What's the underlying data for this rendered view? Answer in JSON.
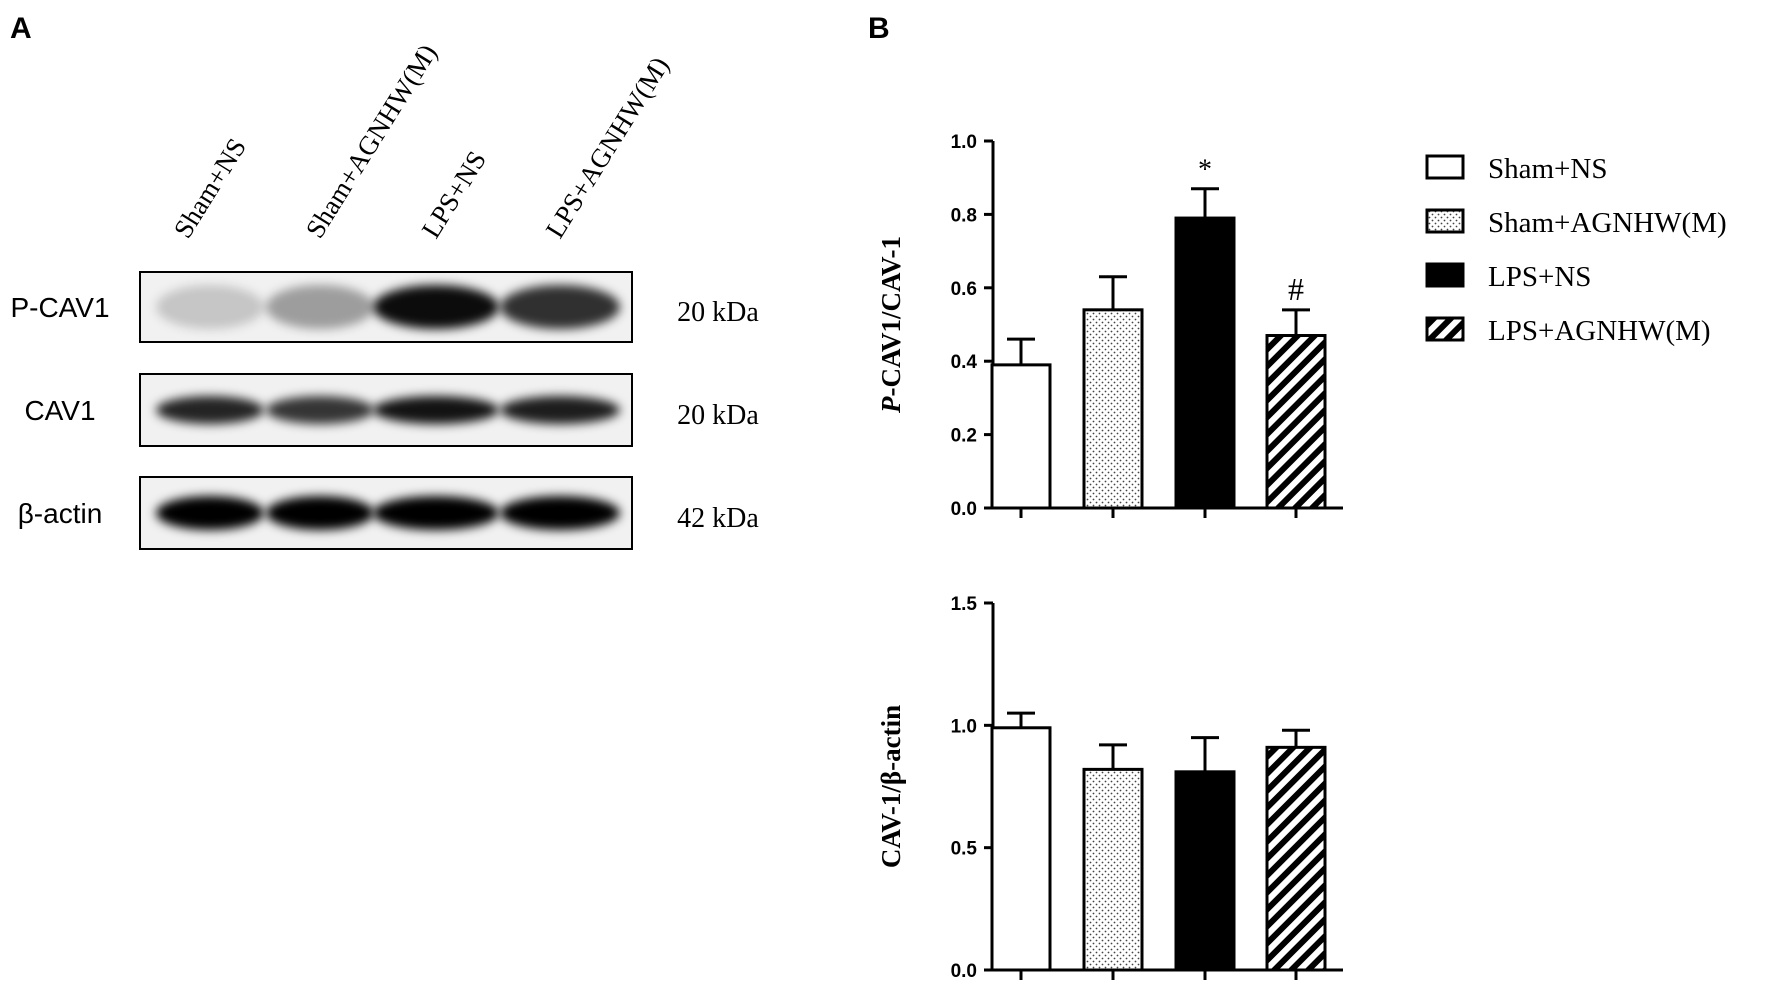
{
  "panels": {
    "a": "A",
    "b": "B"
  },
  "blot": {
    "lanes": [
      "Sham+NS",
      "Sham+AGNHW(M)",
      "LPS+NS",
      "LPS+AGNHW(M)"
    ],
    "rows": [
      {
        "label": "P-CAV1",
        "size": "20 kDa",
        "intensity": [
          0.18,
          0.35,
          0.95,
          0.8
        ]
      },
      {
        "label": "CAV1",
        "size": "20 kDa",
        "intensity": [
          0.85,
          0.78,
          0.92,
          0.88
        ]
      },
      {
        "label": "β-actin",
        "size": "42 kDa",
        "intensity": [
          1.0,
          1.0,
          1.0,
          1.0
        ]
      }
    ]
  },
  "legend": {
    "placement": "top-right",
    "items": [
      {
        "label": "Sham+NS",
        "pattern": "open"
      },
      {
        "label": "Sham+AGNHW(M)",
        "pattern": "dotted"
      },
      {
        "label": "LPS+NS",
        "pattern": "solid"
      },
      {
        "label": "LPS+AGNHW(M)",
        "pattern": "hatched"
      }
    ]
  },
  "chart_data": [
    {
      "type": "bar",
      "categories": [
        "Sham+NS",
        "Sham+AGNHW(M)",
        "LPS+NS",
        "LPS+AGNHW(M)"
      ],
      "values": [
        0.39,
        0.54,
        0.79,
        0.47
      ],
      "errors": [
        0.07,
        0.09,
        0.08,
        0.07
      ],
      "annotations": [
        "",
        "",
        "*",
        "#"
      ],
      "ylabel_italic": "P",
      "ylabel_rest": "-CAV1/CAV-1",
      "ylim": [
        0,
        1.0
      ],
      "yticks": [
        "0.0",
        "0.2",
        "0.4",
        "0.6",
        "0.8",
        "1.0"
      ],
      "grid": false
    },
    {
      "type": "bar",
      "categories": [
        "Sham+NS",
        "Sham+AGNHW(M)",
        "LPS+NS",
        "LPS+AGNHW(M)"
      ],
      "values": [
        0.99,
        0.82,
        0.81,
        0.91
      ],
      "errors": [
        0.06,
        0.1,
        0.14,
        0.07
      ],
      "annotations": [
        "",
        "",
        "",
        ""
      ],
      "ylabel_italic": "",
      "ylabel_rest": "CAV-1/β-actin",
      "ylim": [
        0,
        1.5
      ],
      "yticks": [
        "0.0",
        "0.5",
        "1.0",
        "1.5"
      ],
      "grid": false
    }
  ]
}
